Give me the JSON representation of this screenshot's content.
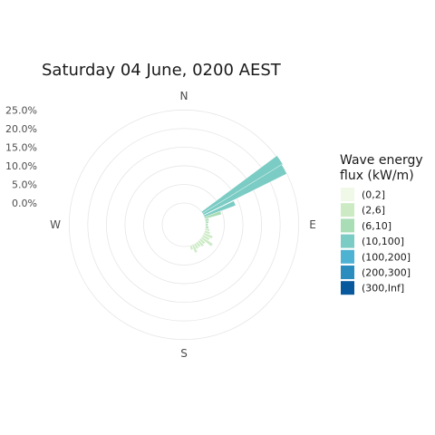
{
  "chart_data": {
    "type": "wind-rose",
    "title": "Saturday 04 June, 0200 AEST",
    "radial_ticks": [
      0,
      5,
      10,
      15,
      20,
      25
    ],
    "radial_tick_labels": [
      "0.0%",
      "5.0%",
      "10.0%",
      "15.0%",
      "20.0%",
      "25.0%"
    ],
    "radial_range": [
      0,
      28
    ],
    "compass_labels": [
      {
        "label": "N",
        "angle": 0
      },
      {
        "label": "E",
        "angle": 90
      },
      {
        "label": "S",
        "angle": 180
      },
      {
        "label": "W",
        "angle": 270
      }
    ],
    "legend": {
      "title_lines": [
        "Wave energy",
        "flux (kW/m)"
      ],
      "items": [
        {
          "label": "(0,2]",
          "color": "#f0f9e8"
        },
        {
          "label": "(2,6]",
          "color": "#ccebc5"
        },
        {
          "label": "(6,10]",
          "color": "#a8ddb5"
        },
        {
          "label": "(10,100]",
          "color": "#7bccc4"
        },
        {
          "label": "(100,200]",
          "color": "#4eb3d3"
        },
        {
          "label": "(200,300]",
          "color": "#2b8cbe"
        },
        {
          "label": "(300,Inf]",
          "color": "#08589e"
        }
      ]
    },
    "bars": [
      {
        "dir": 56,
        "width": 6,
        "bin": "(10,100]",
        "from": 0,
        "to": 25.3
      },
      {
        "dir": 61,
        "width": 6,
        "bin": "(10,100]",
        "from": 0,
        "to": 25.0
      },
      {
        "dir": 67,
        "width": 6,
        "bin": "(10,100]",
        "from": 0,
        "to": 9.0
      },
      {
        "dir": 72,
        "width": 6,
        "bin": "(6,10]",
        "from": 0,
        "to": 4.6
      },
      {
        "dir": 78,
        "width": 6,
        "bin": "(6,10]",
        "from": 0,
        "to": 1.0
      },
      {
        "dir": 84,
        "width": 6,
        "bin": "(6,10]",
        "from": 0,
        "to": 0.8
      },
      {
        "dir": 90,
        "width": 6,
        "bin": "(6,10]",
        "from": 0,
        "to": 0.6
      },
      {
        "dir": 96,
        "width": 6,
        "bin": "(6,10]",
        "from": 0,
        "to": 0.8
      },
      {
        "dir": 102,
        "width": 6,
        "bin": "(2,6]",
        "from": 0,
        "to": 1.2
      },
      {
        "dir": 108,
        "width": 6,
        "bin": "(2,6]",
        "from": 0,
        "to": 1.5
      },
      {
        "dir": 114,
        "width": 6,
        "bin": "(2,6]",
        "from": 0,
        "to": 2.5
      },
      {
        "dir": 120,
        "width": 6,
        "bin": "(2,6]",
        "from": 0,
        "to": 2.0
      },
      {
        "dir": 126,
        "width": 6,
        "bin": "(2,6]",
        "from": 0,
        "to": 3.5
      },
      {
        "dir": 132,
        "width": 6,
        "bin": "(2,6]",
        "from": 0,
        "to": 1.6
      },
      {
        "dir": 138,
        "width": 6,
        "bin": "(2,6]",
        "from": 0,
        "to": 1.8
      },
      {
        "dir": 144,
        "width": 6,
        "bin": "(2,6]",
        "from": 0,
        "to": 1.4
      },
      {
        "dir": 150,
        "width": 6,
        "bin": "(2,6]",
        "from": 0,
        "to": 1.5
      },
      {
        "dir": 156,
        "width": 6,
        "bin": "(2,6]",
        "from": 0,
        "to": 2.3
      },
      {
        "dir": 162,
        "width": 6,
        "bin": "(2,6]",
        "from": 0,
        "to": 1.2
      }
    ]
  }
}
